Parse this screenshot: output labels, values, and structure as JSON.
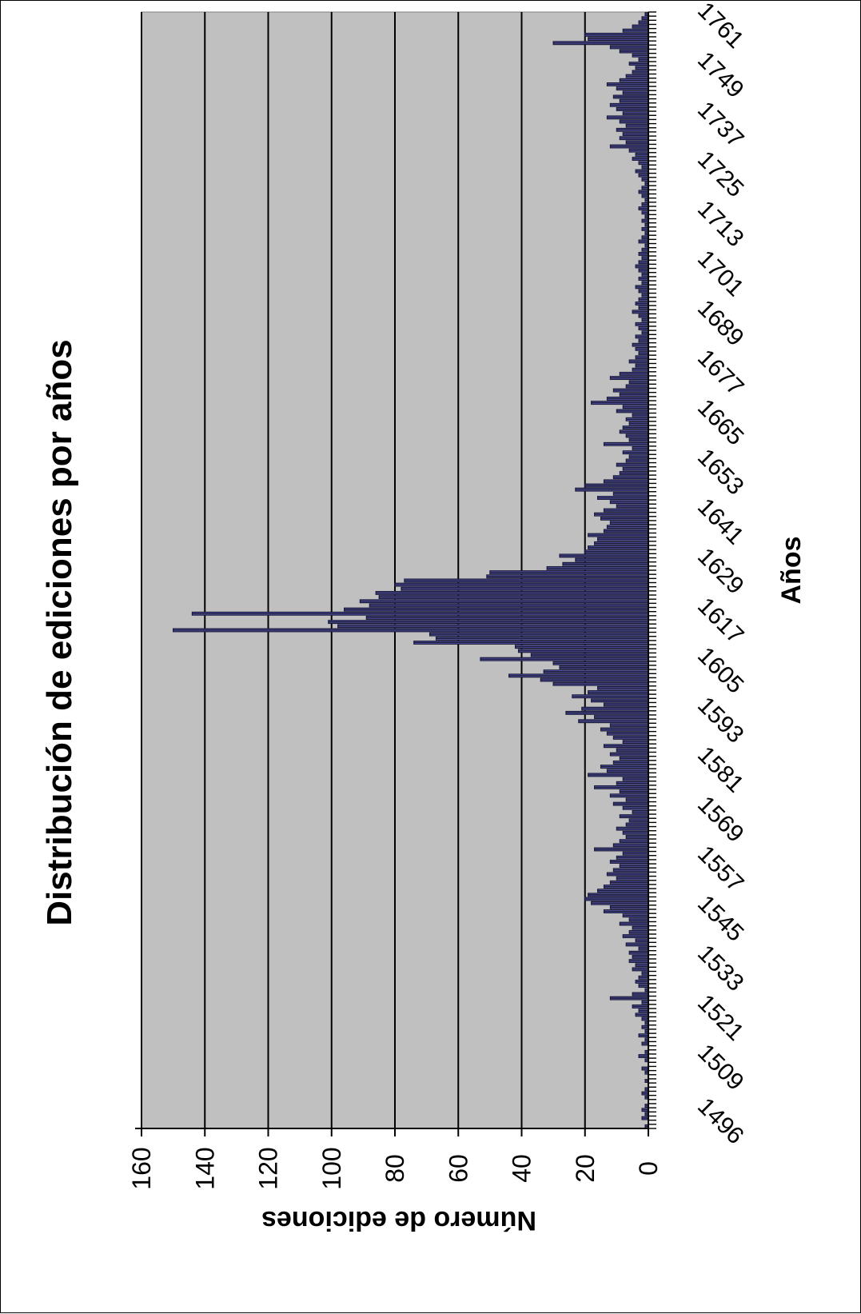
{
  "chart_data": {
    "type": "bar",
    "orientation": "rotated",
    "title": "Distribución de ediciones por años",
    "xlabel": "Años",
    "ylabel": "Número  de  ediciones",
    "ylim": [
      0,
      160
    ],
    "yticks": [
      0,
      20,
      40,
      60,
      80,
      100,
      120,
      140,
      160
    ],
    "xlim": [
      1496,
      1766
    ],
    "xticks": [
      1496,
      1509,
      1521,
      1533,
      1545,
      1557,
      1569,
      1581,
      1593,
      1605,
      1617,
      1629,
      1641,
      1653,
      1665,
      1677,
      1689,
      1701,
      1713,
      1725,
      1737,
      1749,
      1761
    ],
    "grid": true,
    "background": "#c0c0c0",
    "bar_color": "#1a1a3a",
    "bar_highlight": "#6c6ccc",
    "bars": [
      [
        1496,
        1
      ],
      [
        1497,
        0
      ],
      [
        1498,
        2
      ],
      [
        1499,
        1
      ],
      [
        1500,
        2
      ],
      [
        1501,
        1
      ],
      [
        1502,
        0
      ],
      [
        1503,
        1
      ],
      [
        1504,
        2
      ],
      [
        1505,
        1
      ],
      [
        1506,
        0
      ],
      [
        1507,
        1
      ],
      [
        1508,
        0
      ],
      [
        1509,
        1
      ],
      [
        1510,
        2
      ],
      [
        1511,
        0
      ],
      [
        1512,
        1
      ],
      [
        1513,
        3
      ],
      [
        1514,
        1
      ],
      [
        1515,
        0
      ],
      [
        1516,
        2
      ],
      [
        1517,
        1
      ],
      [
        1518,
        3
      ],
      [
        1519,
        1
      ],
      [
        1520,
        2
      ],
      [
        1521,
        1
      ],
      [
        1522,
        2
      ],
      [
        1523,
        4
      ],
      [
        1524,
        3
      ],
      [
        1525,
        5
      ],
      [
        1526,
        2
      ],
      [
        1527,
        12
      ],
      [
        1528,
        5
      ],
      [
        1529,
        1
      ],
      [
        1530,
        3
      ],
      [
        1531,
        4
      ],
      [
        1532,
        3
      ],
      [
        1533,
        2
      ],
      [
        1534,
        5
      ],
      [
        1535,
        4
      ],
      [
        1536,
        6
      ],
      [
        1537,
        5
      ],
      [
        1538,
        6
      ],
      [
        1539,
        3
      ],
      [
        1540,
        7
      ],
      [
        1541,
        4
      ],
      [
        1542,
        8
      ],
      [
        1543,
        6
      ],
      [
        1544,
        5
      ],
      [
        1545,
        9
      ],
      [
        1546,
        6
      ],
      [
        1547,
        8
      ],
      [
        1548,
        14
      ],
      [
        1549,
        12
      ],
      [
        1550,
        18
      ],
      [
        1551,
        20
      ],
      [
        1552,
        19
      ],
      [
        1553,
        16
      ],
      [
        1554,
        14
      ],
      [
        1555,
        12
      ],
      [
        1556,
        10
      ],
      [
        1557,
        13
      ],
      [
        1558,
        11
      ],
      [
        1559,
        9
      ],
      [
        1560,
        12
      ],
      [
        1561,
        10
      ],
      [
        1562,
        8
      ],
      [
        1563,
        17
      ],
      [
        1564,
        11
      ],
      [
        1565,
        9
      ],
      [
        1566,
        7
      ],
      [
        1567,
        8
      ],
      [
        1568,
        10
      ],
      [
        1569,
        7
      ],
      [
        1570,
        6
      ],
      [
        1571,
        9
      ],
      [
        1572,
        5
      ],
      [
        1573,
        8
      ],
      [
        1574,
        11
      ],
      [
        1575,
        7
      ],
      [
        1576,
        12
      ],
      [
        1577,
        9
      ],
      [
        1578,
        17
      ],
      [
        1579,
        10
      ],
      [
        1580,
        8
      ],
      [
        1581,
        19
      ],
      [
        1582,
        13
      ],
      [
        1583,
        15
      ],
      [
        1584,
        11
      ],
      [
        1585,
        9
      ],
      [
        1586,
        12
      ],
      [
        1587,
        10
      ],
      [
        1588,
        14
      ],
      [
        1589,
        8
      ],
      [
        1590,
        11
      ],
      [
        1591,
        13
      ],
      [
        1592,
        15
      ],
      [
        1593,
        12
      ],
      [
        1594,
        22
      ],
      [
        1595,
        17
      ],
      [
        1596,
        26
      ],
      [
        1597,
        21
      ],
      [
        1598,
        14
      ],
      [
        1599,
        18
      ],
      [
        1600,
        24
      ],
      [
        1601,
        19
      ],
      [
        1602,
        16
      ],
      [
        1603,
        30
      ],
      [
        1604,
        34
      ],
      [
        1605,
        44
      ],
      [
        1606,
        33
      ],
      [
        1607,
        28
      ],
      [
        1608,
        30
      ],
      [
        1609,
        53
      ],
      [
        1610,
        37
      ],
      [
        1611,
        41
      ],
      [
        1612,
        42
      ],
      [
        1613,
        74
      ],
      [
        1614,
        67
      ],
      [
        1615,
        69
      ],
      [
        1616,
        150
      ],
      [
        1617,
        98
      ],
      [
        1618,
        101
      ],
      [
        1619,
        89
      ],
      [
        1620,
        144
      ],
      [
        1621,
        96
      ],
      [
        1622,
        88
      ],
      [
        1623,
        91
      ],
      [
        1624,
        85
      ],
      [
        1625,
        86
      ],
      [
        1626,
        78
      ],
      [
        1627,
        80
      ],
      [
        1628,
        77
      ],
      [
        1629,
        51
      ],
      [
        1630,
        50
      ],
      [
        1631,
        32
      ],
      [
        1632,
        27
      ],
      [
        1633,
        23
      ],
      [
        1634,
        28
      ],
      [
        1635,
        20
      ],
      [
        1636,
        19
      ],
      [
        1637,
        17
      ],
      [
        1638,
        16
      ],
      [
        1639,
        19
      ],
      [
        1640,
        14
      ],
      [
        1641,
        13
      ],
      [
        1642,
        12
      ],
      [
        1643,
        15
      ],
      [
        1644,
        17
      ],
      [
        1645,
        14
      ],
      [
        1646,
        10
      ],
      [
        1647,
        12
      ],
      [
        1648,
        16
      ],
      [
        1649,
        11
      ],
      [
        1650,
        23
      ],
      [
        1651,
        20
      ],
      [
        1652,
        14
      ],
      [
        1653,
        11
      ],
      [
        1654,
        9
      ],
      [
        1655,
        8
      ],
      [
        1656,
        10
      ],
      [
        1657,
        7
      ],
      [
        1658,
        6
      ],
      [
        1659,
        8
      ],
      [
        1660,
        5
      ],
      [
        1661,
        14
      ],
      [
        1662,
        6
      ],
      [
        1663,
        7
      ],
      [
        1664,
        9
      ],
      [
        1665,
        8
      ],
      [
        1666,
        6
      ],
      [
        1667,
        7
      ],
      [
        1668,
        5
      ],
      [
        1669,
        10
      ],
      [
        1670,
        8
      ],
      [
        1671,
        18
      ],
      [
        1672,
        13
      ],
      [
        1673,
        9
      ],
      [
        1674,
        11
      ],
      [
        1675,
        7
      ],
      [
        1676,
        6
      ],
      [
        1677,
        12
      ],
      [
        1678,
        9
      ],
      [
        1679,
        5
      ],
      [
        1680,
        4
      ],
      [
        1681,
        6
      ],
      [
        1682,
        4
      ],
      [
        1683,
        3
      ],
      [
        1684,
        4
      ],
      [
        1685,
        5
      ],
      [
        1686,
        3
      ],
      [
        1687,
        4
      ],
      [
        1688,
        2
      ],
      [
        1689,
        3
      ],
      [
        1690,
        4
      ],
      [
        1691,
        2
      ],
      [
        1692,
        3
      ],
      [
        1693,
        5
      ],
      [
        1694,
        3
      ],
      [
        1695,
        4
      ],
      [
        1696,
        3
      ],
      [
        1697,
        2
      ],
      [
        1698,
        3
      ],
      [
        1699,
        4
      ],
      [
        1700,
        2
      ],
      [
        1701,
        3
      ],
      [
        1702,
        2
      ],
      [
        1703,
        3
      ],
      [
        1704,
        4
      ],
      [
        1705,
        3
      ],
      [
        1706,
        2
      ],
      [
        1707,
        3
      ],
      [
        1708,
        2
      ],
      [
        1709,
        1
      ],
      [
        1710,
        3
      ],
      [
        1711,
        2
      ],
      [
        1712,
        1
      ],
      [
        1713,
        2
      ],
      [
        1714,
        1
      ],
      [
        1715,
        2
      ],
      [
        1716,
        1
      ],
      [
        1717,
        2
      ],
      [
        1718,
        3
      ],
      [
        1719,
        2
      ],
      [
        1720,
        1
      ],
      [
        1721,
        2
      ],
      [
        1722,
        3
      ],
      [
        1723,
        2
      ],
      [
        1724,
        1
      ],
      [
        1725,
        2
      ],
      [
        1726,
        3
      ],
      [
        1727,
        4
      ],
      [
        1728,
        2
      ],
      [
        1729,
        3
      ],
      [
        1730,
        5
      ],
      [
        1731,
        4
      ],
      [
        1732,
        6
      ],
      [
        1733,
        12
      ],
      [
        1734,
        7
      ],
      [
        1735,
        9
      ],
      [
        1736,
        8
      ],
      [
        1737,
        10
      ],
      [
        1738,
        7
      ],
      [
        1739,
        9
      ],
      [
        1740,
        13
      ],
      [
        1741,
        8
      ],
      [
        1742,
        10
      ],
      [
        1743,
        12
      ],
      [
        1744,
        9
      ],
      [
        1745,
        11
      ],
      [
        1746,
        8
      ],
      [
        1747,
        10
      ],
      [
        1748,
        13
      ],
      [
        1749,
        9
      ],
      [
        1750,
        7
      ],
      [
        1751,
        5
      ],
      [
        1752,
        4
      ],
      [
        1753,
        6
      ],
      [
        1754,
        3
      ],
      [
        1755,
        5
      ],
      [
        1756,
        9
      ],
      [
        1757,
        12
      ],
      [
        1758,
        30
      ],
      [
        1759,
        19
      ],
      [
        1760,
        20
      ],
      [
        1761,
        8
      ],
      [
        1762,
        5
      ],
      [
        1763,
        3
      ],
      [
        1764,
        2
      ],
      [
        1765,
        1
      ]
    ]
  }
}
